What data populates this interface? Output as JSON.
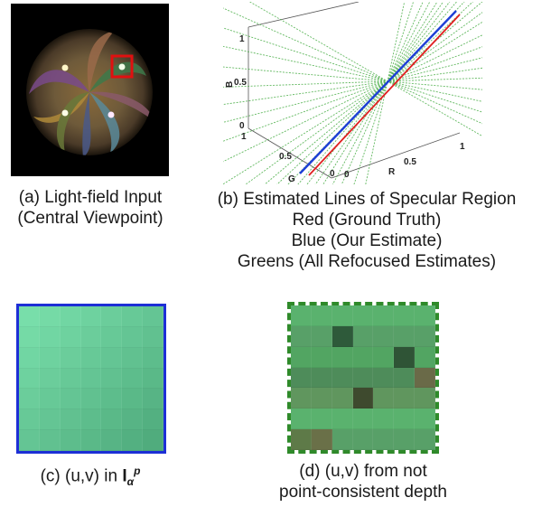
{
  "figure": {
    "captions": {
      "a": [
        "(a) Light-field Input",
        "(Central Viewpoint)"
      ],
      "b": [
        "(b) Estimated Lines of Specular Region",
        "Red (Ground Truth)",
        "Blue (Our Estimate)",
        "Greens (All Refocused Estimates)"
      ],
      "c": {
        "prefix": "(c) (u,v) in ",
        "symbol": "I",
        "subscript": "α",
        "superscript": "p"
      },
      "d": [
        "(d) (u,v) from not",
        "point-consistent depth"
      ]
    },
    "colors": {
      "ground_truth": "#e02020",
      "our_estimate": "#1d3fd6",
      "refocused": "#3da83a",
      "selection_box": "#e01010",
      "grid_c_border": "#1d2fd6",
      "grid_d_border": "#2f8a2a"
    }
  },
  "chart_data": {
    "type": "line",
    "title": "",
    "axes": {
      "R": {
        "label": "R",
        "ticks": [
          "0",
          "0.5",
          "1"
        ]
      },
      "G": {
        "label": "G",
        "ticks": [
          "0",
          "0.5",
          "1"
        ]
      },
      "B": {
        "label": "B",
        "ticks": [
          "0",
          "0.5",
          "1"
        ]
      }
    },
    "legend": []
  }
}
